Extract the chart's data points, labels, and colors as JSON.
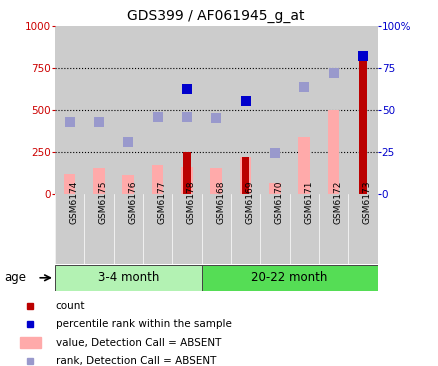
{
  "title": "GDS399 / AF061945_g_at",
  "samples": [
    "GSM6174",
    "GSM6175",
    "GSM6176",
    "GSM6177",
    "GSM6178",
    "GSM6168",
    "GSM6169",
    "GSM6170",
    "GSM6171",
    "GSM6172",
    "GSM6173"
  ],
  "count": [
    0,
    0,
    0,
    0,
    250,
    0,
    220,
    0,
    0,
    0,
    850
  ],
  "percentile_rank": [
    null,
    null,
    null,
    null,
    625,
    null,
    550,
    null,
    null,
    null,
    820
  ],
  "value_absent": [
    120,
    155,
    110,
    175,
    160,
    155,
    220,
    65,
    340,
    500,
    0
  ],
  "rank_absent": [
    430,
    430,
    310,
    455,
    455,
    450,
    null,
    245,
    635,
    720,
    null
  ],
  "age_groups": [
    {
      "label": "3-4 month",
      "start": 0,
      "end": 5,
      "color": "#b3f2b3"
    },
    {
      "label": "20-22 month",
      "start": 5,
      "end": 11,
      "color": "#55dd55"
    }
  ],
  "left_ylim": [
    0,
    1000
  ],
  "right_ylim": [
    0,
    100
  ],
  "left_yticks": [
    0,
    250,
    500,
    750,
    1000
  ],
  "right_yticks": [
    0,
    25,
    50,
    75,
    100
  ],
  "right_yticklabels": [
    "0",
    "25",
    "50",
    "75",
    "100%"
  ],
  "bar_color_dark_red": "#bb0000",
  "bar_color_pink": "#ffaaaa",
  "dot_color_blue": "#0000cc",
  "dot_color_light_blue": "#9999cc",
  "dot_size": 55,
  "left_axis_color": "#cc0000",
  "right_axis_color": "#0000cc",
  "col_bg": "#cccccc"
}
